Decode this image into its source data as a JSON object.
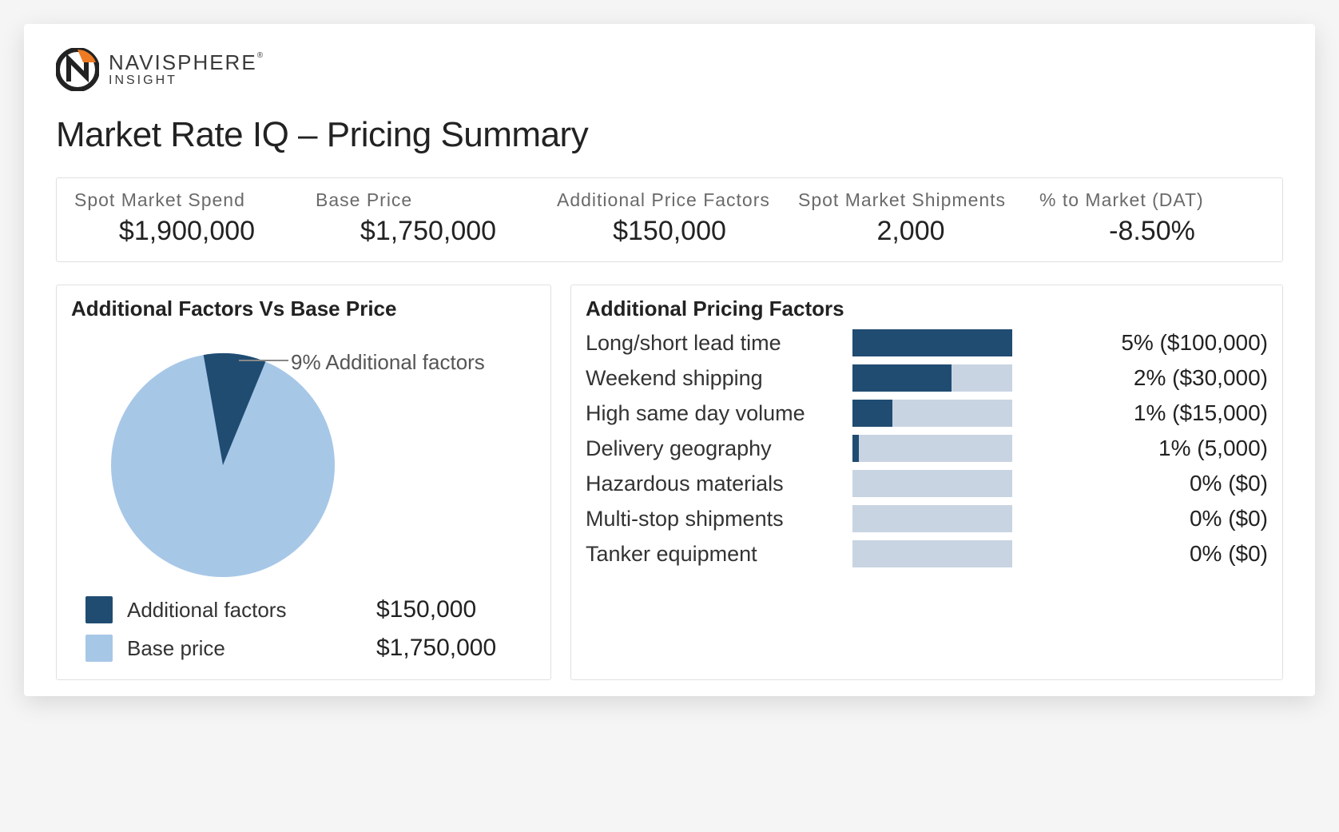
{
  "brand": {
    "name_line1": "NAVISPHERE",
    "name_line2": "INSIGHT",
    "registered_mark": "®",
    "logo_colors": {
      "dark": "#222222",
      "accent": "#ee7b23",
      "white": "#ffffff"
    }
  },
  "page": {
    "title": "Market Rate IQ – Pricing Summary"
  },
  "kpis": [
    {
      "label": "Spot Market Spend",
      "value": "$1,900,000"
    },
    {
      "label": "Base Price",
      "value": "$1,750,000"
    },
    {
      "label": "Additional Price Factors",
      "value": "$150,000"
    },
    {
      "label": "Spot Market Shipments",
      "value": "2,000"
    },
    {
      "label": "% to Market (DAT)",
      "value": "-8.50%"
    }
  ],
  "pie_panel": {
    "title": "Additional Factors Vs Base Price",
    "type": "pie",
    "callout_text": "9% Additional factors",
    "slice_additional_pct": 9,
    "slice_base_pct": 91,
    "colors": {
      "additional": "#204c72",
      "base": "#a7c7e7",
      "background": "#ffffff"
    },
    "start_angle_deg": -10,
    "legend": [
      {
        "swatch": "#204c72",
        "label": "Additional factors",
        "value": "$150,000"
      },
      {
        "swatch": "#a7c7e7",
        "label": "Base price",
        "value": "$1,750,000"
      }
    ]
  },
  "factors_panel": {
    "title": "Additional Pricing Factors",
    "type": "bar",
    "bar_track_color": "#c9d4e2",
    "bar_fill_color": "#204c72",
    "max_pct": 5,
    "rows": [
      {
        "label": "Long/short lead time",
        "pct": 5,
        "display": "5% ($100,000)"
      },
      {
        "label": "Weekend shipping",
        "pct": 2,
        "display": "2% ($30,000)"
      },
      {
        "label": "High same day volume",
        "pct": 1,
        "display": "1% ($15,000)"
      },
      {
        "label": "Delivery geography",
        "pct": 1,
        "display": "1% (5,000)"
      },
      {
        "label": "Hazardous materials",
        "pct": 0,
        "display": "0% ($0)"
      },
      {
        "label": "Multi-stop shipments",
        "pct": 0,
        "display": "0% ($0)"
      },
      {
        "label": "Tanker equipment",
        "pct": 0,
        "display": "0% ($0)"
      }
    ]
  },
  "style": {
    "card_background": "#ffffff",
    "page_background": "#f5f5f5",
    "border_color": "#e0e0e0",
    "text_primary": "#222222",
    "text_secondary": "#6a6a6a"
  }
}
